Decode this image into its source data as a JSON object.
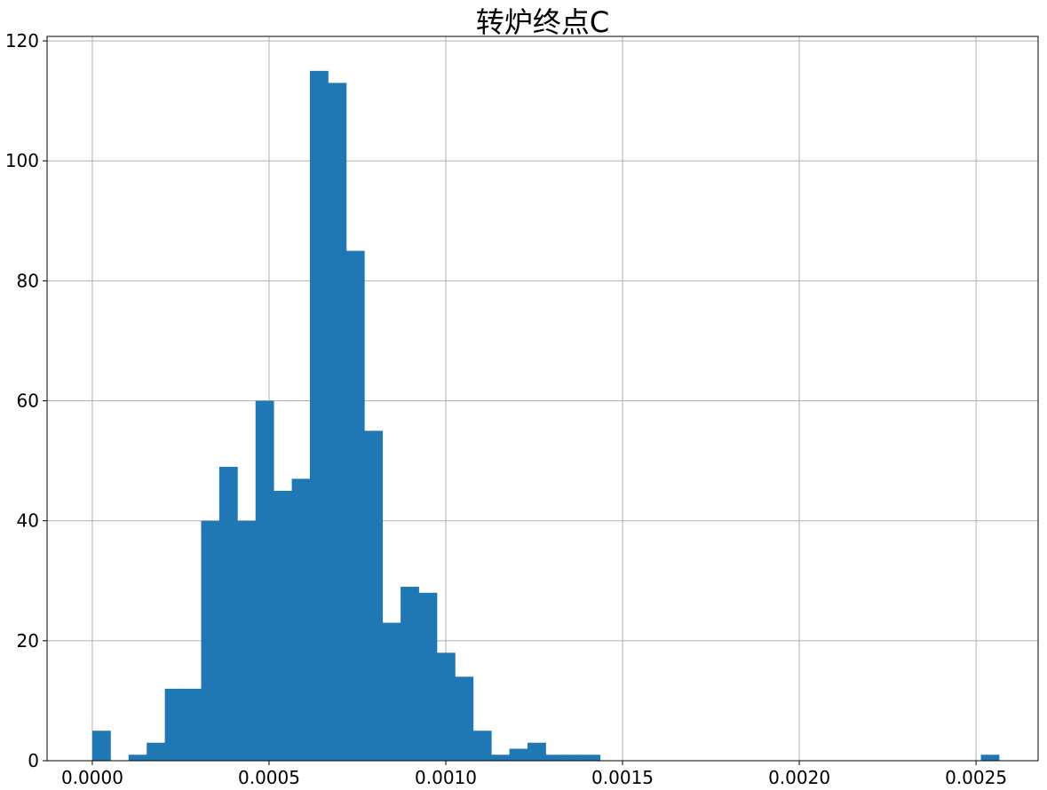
{
  "chart_data": {
    "type": "bar",
    "title": "转炉终点C",
    "xlabel": "",
    "ylabel": "",
    "bin_start": 0.0,
    "bin_width": 5.13e-05,
    "values": [
      5,
      0,
      1,
      3,
      12,
      12,
      40,
      49,
      40,
      60,
      45,
      47,
      115,
      113,
      85,
      55,
      23,
      29,
      28,
      18,
      14,
      5,
      1,
      2,
      3,
      1,
      1,
      1,
      0,
      0,
      0,
      0,
      0,
      0,
      0,
      0,
      0,
      0,
      0,
      0,
      0,
      0,
      0,
      0,
      0,
      0,
      0,
      0,
      0,
      1
    ],
    "xlim": [
      -0.000128,
      0.0026756
    ],
    "ylim": [
      0,
      120.75
    ],
    "x_ticks": [
      {
        "value": 0.0,
        "label": "0.0000"
      },
      {
        "value": 0.0005,
        "label": "0.0005"
      },
      {
        "value": 0.001,
        "label": "0.0010"
      },
      {
        "value": 0.0015,
        "label": "0.0015"
      },
      {
        "value": 0.002,
        "label": "0.0020"
      },
      {
        "value": 0.0025,
        "label": "0.0025"
      }
    ],
    "y_ticks": [
      {
        "value": 0,
        "label": "0"
      },
      {
        "value": 20,
        "label": "20"
      },
      {
        "value": 40,
        "label": "40"
      },
      {
        "value": 60,
        "label": "60"
      },
      {
        "value": 80,
        "label": "80"
      },
      {
        "value": 100,
        "label": "100"
      },
      {
        "value": 120,
        "label": "120"
      }
    ],
    "grid": true,
    "bar_color": "#1f77b4"
  }
}
